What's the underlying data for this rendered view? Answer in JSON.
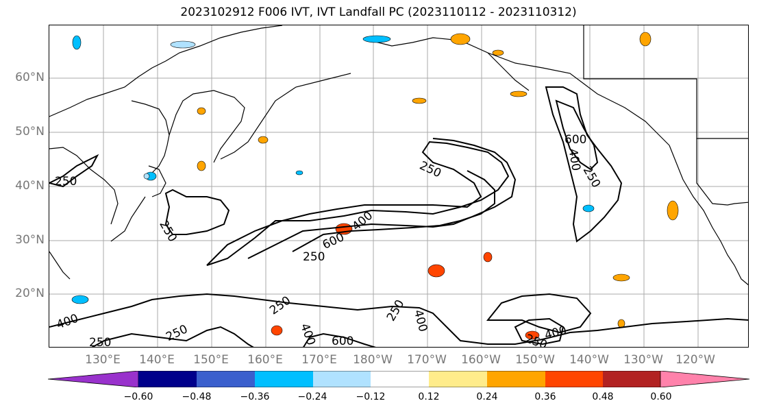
{
  "title": "2023102912 F006 IVT, IVT Landfall PC (2023110112 - 2023110312)",
  "map": {
    "lat_labels": [
      "60°N",
      "50°N",
      "40°N",
      "30°N",
      "20°N"
    ],
    "lon_labels": [
      "130°E",
      "140°E",
      "150°E",
      "160°E",
      "170°E",
      "180°W",
      "170°W",
      "160°W",
      "150°W",
      "140°W",
      "130°W",
      "120°W"
    ],
    "contour_labels": [
      "250",
      "250",
      "250",
      "250",
      "400",
      "600",
      "250",
      "600",
      "400",
      "250",
      "250",
      "400",
      "600",
      "400",
      "250",
      "250",
      "250",
      "400",
      "400"
    ]
  },
  "colorbar": {
    "colors": [
      "#9932cc",
      "#00008b",
      "#3a5fcd",
      "#00bfff",
      "#b0e2ff",
      "#ffffff",
      "#ffec8b",
      "#ffa500",
      "#ff4500",
      "#b22222",
      "#ff82ab"
    ],
    "tick_labels": [
      "−0.60",
      "−0.48",
      "−0.36",
      "−0.24",
      "−0.12",
      "0.12",
      "0.24",
      "0.36",
      "0.48",
      "0.60"
    ]
  }
}
